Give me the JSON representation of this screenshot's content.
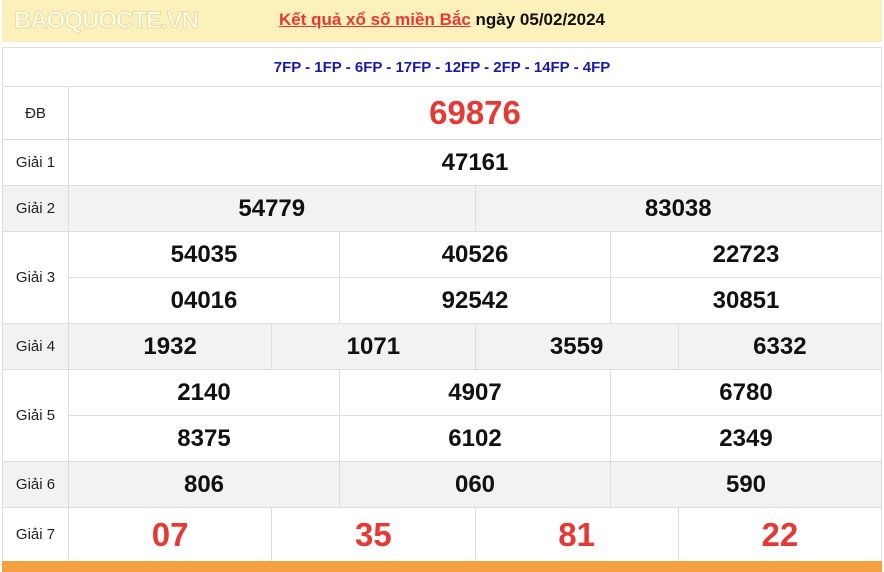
{
  "header": {
    "link": "Kết quả xổ số miền Bắc",
    "date": "ngày 05/02/2024"
  },
  "codes": "7FP - 1FP - 6FP - 17FP - 12FP - 2FP - 14FP - 4FP",
  "prizes": {
    "db": {
      "label": "ĐB",
      "values": [
        "69876"
      ]
    },
    "g1": {
      "label": "Giải 1",
      "values": [
        "47161"
      ]
    },
    "g2": {
      "label": "Giải 2",
      "values": [
        "54779",
        "83038"
      ]
    },
    "g3": {
      "label": "Giải 3",
      "values": [
        "54035",
        "40526",
        "22723",
        "04016",
        "92542",
        "30851"
      ]
    },
    "g4": {
      "label": "Giải 4",
      "values": [
        "1932",
        "1071",
        "3559",
        "6332"
      ]
    },
    "g5": {
      "label": "Giải 5",
      "values": [
        "2140",
        "4907",
        "6780",
        "8375",
        "6102",
        "2349"
      ]
    },
    "g6": {
      "label": "Giải 6",
      "values": [
        "806",
        "060",
        "590"
      ]
    },
    "g7": {
      "label": "Giải 7",
      "values": [
        "07",
        "35",
        "81",
        "22"
      ]
    }
  },
  "watermark": "BAOQUOCTE.VN",
  "colors": {
    "accent_red": "#e53935",
    "header_bg": "#fdf1bb",
    "code_blue": "#1a1aa6",
    "footer_orange": "#f2a040"
  }
}
